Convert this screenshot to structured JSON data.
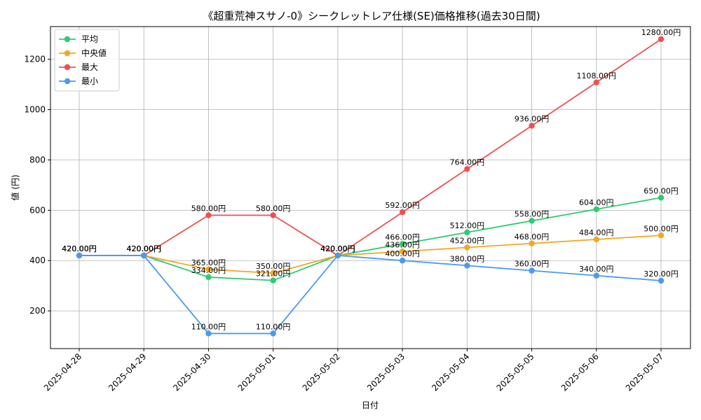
{
  "chart_data": {
    "type": "line",
    "title": "《超重荒神スサノ-0》シークレットレア仕様(SE)価格推移(過去30日間)",
    "xlabel": "日付",
    "ylabel": "値 (円)",
    "x": [
      "2025-04-28",
      "2025-04-29",
      "2025-04-30",
      "2025-05-01",
      "2025-05-02",
      "2025-05-03",
      "2025-05-04",
      "2025-05-05",
      "2025-05-06",
      "2025-05-07"
    ],
    "ylim": [
      50,
      1330
    ],
    "yticks": [
      200,
      400,
      600,
      800,
      1000,
      1200
    ],
    "grid": true,
    "legend_position": "top-left",
    "series": [
      {
        "name": "平均",
        "color": "#2ecc71",
        "values": [
          420,
          420,
          334,
          321,
          420,
          466,
          512,
          558,
          604,
          650
        ],
        "labels": [
          "420.00円",
          "420.00円",
          "334.00円",
          "321.00円",
          "420.00円",
          "466.00円",
          "512.00円",
          "558.00円",
          "604.00円",
          "650.00円"
        ]
      },
      {
        "name": "中央値",
        "color": "#f5a623",
        "values": [
          420,
          420,
          365,
          350,
          420,
          436,
          452,
          468,
          484,
          500
        ],
        "labels": [
          "420.00円",
          "420.00円",
          "365.00円",
          "350.00円",
          "420.00円",
          "436.00円",
          "452.00円",
          "468.00円",
          "484.00円",
          "500.00円"
        ]
      },
      {
        "name": "最大",
        "color": "#f05050",
        "values": [
          420,
          420,
          580,
          580,
          420,
          592,
          764,
          936,
          1108,
          1280
        ],
        "labels": [
          "420.00円",
          "420.00円",
          "580.00円",
          "580.00円",
          "420.00円",
          "592.00円",
          "764.00円",
          "936.00円",
          "1108.00円",
          "1280.00円"
        ]
      },
      {
        "name": "最小",
        "color": "#4a9af0",
        "values": [
          420,
          420,
          110,
          110,
          420,
          400,
          380,
          360,
          340,
          320
        ],
        "labels": [
          "420.00円",
          "420.00円",
          "110.00円",
          "110.00円",
          "420.00円",
          "400.00円",
          "380.00円",
          "360.00円",
          "340.00円",
          "320.00円"
        ]
      }
    ]
  }
}
